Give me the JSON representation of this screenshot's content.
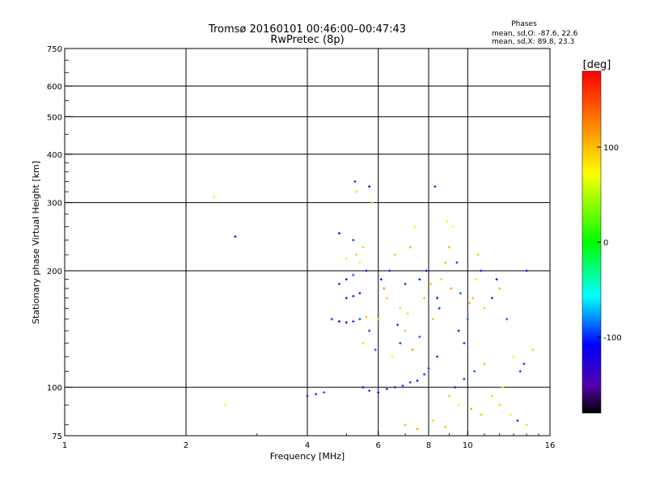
{
  "chart_data": {
    "type": "scatter",
    "title": "Tromsø 20160101 00:46:00–00:47:43",
    "subtitle": "RwPretec (8p)",
    "xlabel": "Frequency [MHz]",
    "ylabel": "Stationary phase Virtual Height [km]",
    "x_scale": "log",
    "y_scale": "log",
    "xlim": [
      1,
      16
    ],
    "ylim": [
      75,
      750
    ],
    "x_ticks": [
      1,
      2,
      4,
      6,
      8,
      10,
      16
    ],
    "x_tick_labels": [
      "1",
      "2",
      "4",
      "6",
      "8",
      "10",
      "16"
    ],
    "y_ticks": [
      75,
      100,
      200,
      300,
      400,
      500,
      600,
      750
    ],
    "y_tick_labels": [
      "75",
      "100",
      "200",
      "300",
      "400",
      "500",
      "600",
      "750"
    ],
    "grid": true,
    "phase_stats": {
      "title": "Phases",
      "line_o": "mean, sd,O: -87.6, 22.6",
      "line_x": "mean, sd,X:  89.8, 23.3"
    },
    "colorbar": {
      "label": "[deg]",
      "range": [
        -180,
        180
      ],
      "ticks": [
        100,
        0,
        -100
      ],
      "tick_labels": [
        "100",
        "0",
        "-100"
      ],
      "colors": [
        "#ff0000",
        "#ff8800",
        "#ffff00",
        "#00ff00",
        "#00ffff",
        "#0000ff",
        "#5500aa",
        "#000000"
      ]
    },
    "series": [
      {
        "values": [
          [
            2.35,
            310,
            80
          ],
          [
            2.65,
            245,
            -120
          ],
          [
            2.5,
            90,
            70
          ],
          [
            4.0,
            95,
            -110
          ],
          [
            4.2,
            96,
            -100
          ],
          [
            4.4,
            97,
            -90
          ],
          [
            4.6,
            150,
            -100
          ],
          [
            4.8,
            148,
            -110
          ],
          [
            5.0,
            147,
            -105
          ],
          [
            5.2,
            148,
            -100
          ],
          [
            5.4,
            150,
            -95
          ],
          [
            5.6,
            152,
            100
          ],
          [
            5.0,
            170,
            -110
          ],
          [
            5.2,
            172,
            -100
          ],
          [
            5.4,
            175,
            -110
          ],
          [
            4.8,
            185,
            -100
          ],
          [
            5.0,
            190,
            -120
          ],
          [
            5.2,
            195,
            -90
          ],
          [
            5.6,
            200,
            -110
          ],
          [
            5.0,
            215,
            60
          ],
          [
            5.3,
            220,
            100
          ],
          [
            5.5,
            230,
            40
          ],
          [
            4.8,
            250,
            -110
          ],
          [
            5.2,
            240,
            -100
          ],
          [
            5.4,
            210,
            80
          ],
          [
            5.25,
            340,
            -100
          ],
          [
            5.3,
            320,
            90
          ],
          [
            5.7,
            330,
            -110
          ],
          [
            5.8,
            300,
            100
          ],
          [
            5.5,
            130,
            90
          ],
          [
            5.7,
            140,
            -100
          ],
          [
            5.9,
            125,
            -90
          ],
          [
            6.0,
            150,
            100
          ],
          [
            6.2,
            180,
            120
          ],
          [
            6.4,
            200,
            -110
          ],
          [
            6.6,
            220,
            100
          ],
          [
            6.8,
            160,
            90
          ],
          [
            7.0,
            185,
            -100
          ],
          [
            7.2,
            230,
            110
          ],
          [
            7.4,
            260,
            80
          ],
          [
            7.6,
            190,
            -110
          ],
          [
            7.8,
            170,
            100
          ],
          [
            5.5,
            100,
            -110
          ],
          [
            5.7,
            98,
            -100
          ],
          [
            6.0,
            97,
            -105
          ],
          [
            6.3,
            99,
            -100
          ],
          [
            6.6,
            100,
            -110
          ],
          [
            6.9,
            101,
            -95
          ],
          [
            7.2,
            103,
            -100
          ],
          [
            7.5,
            104,
            -110
          ],
          [
            7.8,
            108,
            -100
          ],
          [
            8.0,
            112,
            -100
          ],
          [
            6.5,
            120,
            80
          ],
          [
            6.8,
            130,
            -100
          ],
          [
            7.0,
            140,
            100
          ],
          [
            7.3,
            125,
            110
          ],
          [
            7.6,
            135,
            -90
          ],
          [
            8.2,
            150,
            100
          ],
          [
            8.4,
            170,
            -110
          ],
          [
            8.6,
            190,
            90
          ],
          [
            8.8,
            210,
            100
          ],
          [
            9.0,
            230,
            110
          ],
          [
            9.2,
            260,
            70
          ],
          [
            8.3,
            330,
            -100
          ],
          [
            8.9,
            268,
            60
          ],
          [
            9.5,
            140,
            -110
          ],
          [
            9.8,
            130,
            -100
          ],
          [
            10.0,
            150,
            -90
          ],
          [
            10.3,
            170,
            100
          ],
          [
            10.5,
            190,
            80
          ],
          [
            10.8,
            200,
            -110
          ],
          [
            11.0,
            160,
            90
          ],
          [
            11.5,
            170,
            -100
          ],
          [
            12.0,
            180,
            100
          ],
          [
            12.5,
            150,
            -90
          ],
          [
            13.0,
            120,
            80
          ],
          [
            13.5,
            110,
            -100
          ],
          [
            14.0,
            200,
            -110
          ],
          [
            14.5,
            125,
            90
          ],
          [
            9.0,
            95,
            100
          ],
          [
            9.5,
            90,
            80
          ],
          [
            10.2,
            88,
            110
          ],
          [
            10.8,
            85,
            100
          ],
          [
            11.5,
            95,
            90
          ],
          [
            12.0,
            90,
            100
          ],
          [
            12.8,
            85,
            80
          ],
          [
            13.3,
            82,
            -100
          ],
          [
            14.0,
            80,
            90
          ],
          [
            7.0,
            80,
            100
          ],
          [
            7.5,
            78,
            110
          ],
          [
            8.2,
            82,
            90
          ],
          [
            8.8,
            79,
            100
          ],
          [
            9.3,
            100,
            -110
          ],
          [
            8.4,
            120,
            -100
          ],
          [
            9.8,
            105,
            -100
          ],
          [
            10.4,
            110,
            -90
          ],
          [
            11.0,
            115,
            100
          ],
          [
            12.2,
            100,
            90
          ],
          [
            13.8,
            115,
            -100
          ],
          [
            6.1,
            190,
            -110
          ],
          [
            6.3,
            170,
            100
          ],
          [
            6.7,
            145,
            -100
          ],
          [
            7.1,
            155,
            90
          ],
          [
            7.9,
            200,
            -110
          ],
          [
            8.1,
            185,
            100
          ],
          [
            8.5,
            160,
            -100
          ],
          [
            9.1,
            180,
            110
          ],
          [
            9.6,
            175,
            -90
          ],
          [
            10.1,
            165,
            100
          ],
          [
            9.4,
            210,
            -100
          ],
          [
            10.6,
            220,
            100
          ],
          [
            11.8,
            190,
            -110
          ]
        ]
      }
    ]
  }
}
